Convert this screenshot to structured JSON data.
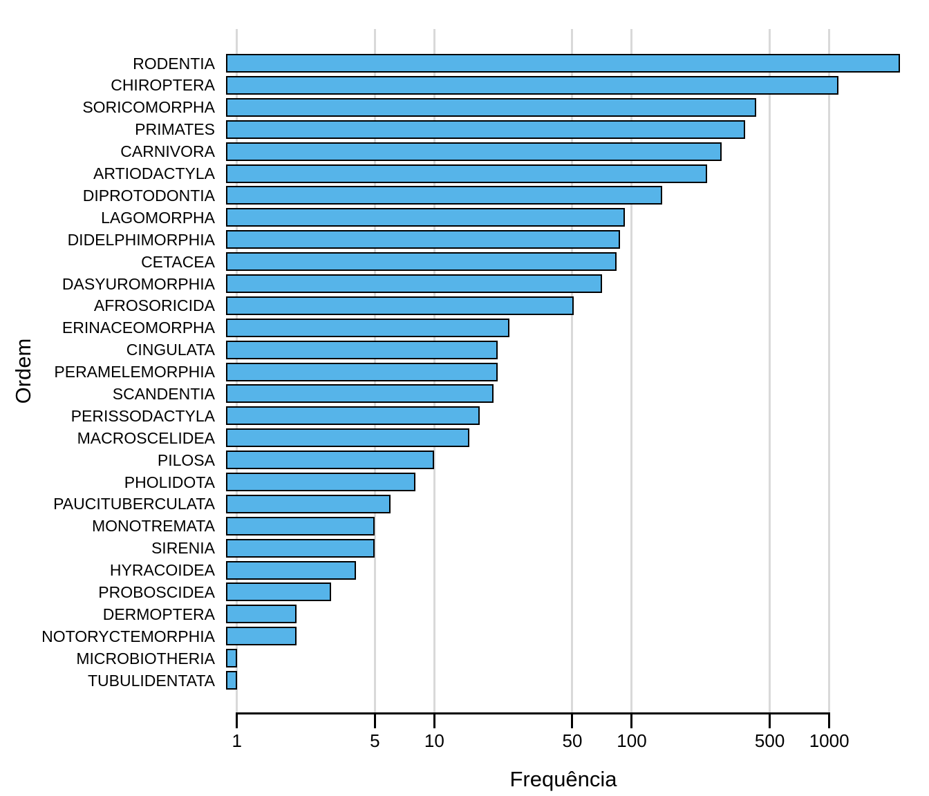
{
  "chart_data": {
    "type": "bar",
    "orientation": "horizontal",
    "title": "",
    "xlabel": "Frequência",
    "ylabel": "Ordem",
    "x_scale": "log10",
    "x_ticks": [
      1,
      5,
      10,
      50,
      100,
      500,
      1000
    ],
    "xlim_log": [
      0.89,
      2400
    ],
    "grid": true,
    "legend": "none",
    "categories": [
      "RODENTIA",
      "CHIROPTERA",
      "SORICOMORPHA",
      "PRIMATES",
      "CARNIVORA",
      "ARTIODACTYLA",
      "DIPROTODONTIA",
      "LAGOMORPHA",
      "DIDELPHIMORPHIA",
      "CETACEA",
      "DASYUROMORPHIA",
      "AFROSORICIDA",
      "ERINACEOMORPHA",
      "CINGULATA",
      "PERAMELEMORPHIA",
      "SCANDENTIA",
      "PERISSODACTYLA",
      "MACROSCELIDEA",
      "PILOSA",
      "PHOLIDOTA",
      "PAUCITUBERCULATA",
      "MONOTREMATA",
      "SIRENIA",
      "HYRACOIDEA",
      "PROBOSCIDEA",
      "DERMOPTERA",
      "NOTORYCTEMORPHIA",
      "MICROBIOTHERIA",
      "TUBULIDENTATA"
    ],
    "values": [
      2277,
      1116,
      428,
      376,
      286,
      240,
      143,
      92,
      87,
      84,
      71,
      51,
      24,
      21,
      21,
      20,
      17,
      15,
      10,
      8,
      6,
      5,
      5,
      4,
      3,
      2,
      2,
      1,
      1
    ],
    "colors": {
      "bar_fill": "#56B4E9",
      "bar_border": "#000000",
      "grid_color": "#D9D9D9",
      "axis_color": "#000000",
      "text_color": "#000000",
      "background": "#FFFFFF"
    }
  }
}
